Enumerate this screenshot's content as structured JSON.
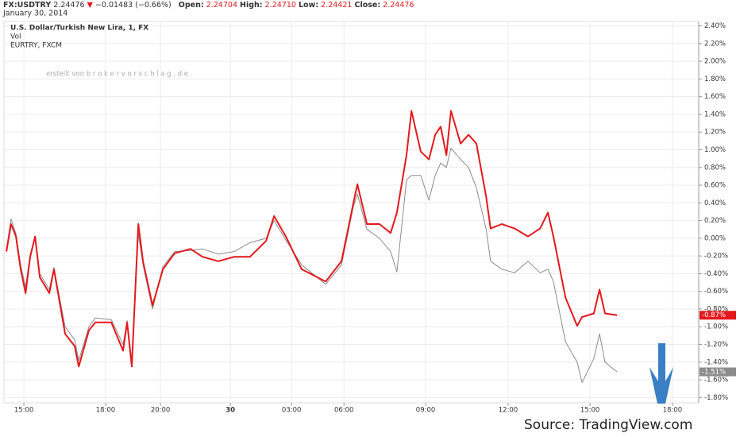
{
  "header": {
    "symbol": "FX:USDTRY",
    "price": "2.24476",
    "change_arrow": "▼",
    "change": "−0.01483 (−0.66%)",
    "open_label": "Open:",
    "open": "2.24704",
    "high_label": "High:",
    "high": "2.24710",
    "low_label": "Low:",
    "low": "2.24421",
    "close_label": "Close:",
    "close": "2.24476",
    "date": "January 30, 2014"
  },
  "chart_data": {
    "type": "line",
    "legend_lines": [
      "U.S. Dollar/Turkish New Lira, 1, FX",
      "Vol",
      "EURTRY, FXCM"
    ],
    "watermark": "erstellt von b r o k e r v o r s c h l a g . d e",
    "source": "Source: TradingView.com",
    "x": [
      -0.64,
      -0.47,
      -0.29,
      -0.12,
      0.06,
      0.23,
      0.41,
      0.58,
      0.93,
      1.1,
      1.51,
      1.86,
      2.01,
      2.38,
      2.62,
      3.2,
      3.63,
      3.78,
      3.95,
      4.19,
      4.36,
      4.71,
      5.09,
      5.52,
      6.1,
      6.54,
      7.12,
      7.7,
      8.28,
      8.87,
      9.16,
      9.59,
      10.17,
      11.05,
      11.63,
      12.06,
      12.21,
      12.56,
      13.02,
      13.43,
      13.66,
      14.01,
      14.19,
      14.53,
      14.83,
      15.06,
      15.26,
      15.47,
      15.64,
      15.99,
      16.28,
      16.57,
      16.92,
      17.09,
      17.5,
      17.97,
      18.46,
      18.9,
      19.19,
      19.39,
      19.83,
      20.26,
      20.44,
      20.87,
      21.08,
      21.28,
      21.72
    ],
    "series": [
      {
        "name": "USDTRY",
        "color": "#e3191e",
        "width": 2,
        "values": [
          -0.15,
          0.16,
          0.02,
          -0.35,
          -0.62,
          -0.21,
          0.02,
          -0.44,
          -0.62,
          -0.35,
          -1.08,
          -1.22,
          -1.45,
          -1.04,
          -0.95,
          -0.95,
          -1.27,
          -0.95,
          -1.45,
          0.16,
          -0.26,
          -0.76,
          -0.35,
          -0.17,
          -0.12,
          -0.21,
          -0.26,
          -0.21,
          -0.21,
          -0.03,
          0.25,
          0.02,
          -0.35,
          -0.49,
          -0.26,
          0.39,
          0.61,
          0.16,
          0.16,
          0.06,
          0.29,
          0.94,
          1.44,
          0.98,
          0.89,
          1.17,
          1.26,
          0.94,
          1.44,
          1.07,
          1.17,
          1.07,
          0.48,
          0.11,
          0.16,
          0.11,
          0.02,
          0.11,
          0.29,
          0.02,
          -0.67,
          -0.99,
          -0.89,
          -0.85,
          -0.58,
          -0.85,
          -0.87
        ],
        "last_value": {
          "value": -0.87,
          "label": "-0.87%"
        }
      },
      {
        "name": "EURTRY",
        "color": "#8c8c8c",
        "width": 1,
        "values": [
          -0.12,
          0.22,
          0.05,
          -0.3,
          -0.55,
          -0.18,
          0.0,
          -0.4,
          -0.58,
          -0.33,
          -1.0,
          -1.15,
          -1.38,
          -1.0,
          -0.9,
          -0.92,
          -1.2,
          -0.93,
          -1.4,
          0.05,
          -0.3,
          -0.8,
          -0.32,
          -0.15,
          -0.14,
          -0.12,
          -0.18,
          -0.15,
          -0.05,
          0.0,
          0.2,
          -0.02,
          -0.3,
          -0.52,
          -0.3,
          0.35,
          0.5,
          0.1,
          0.0,
          -0.15,
          -0.38,
          0.66,
          0.71,
          0.71,
          0.43,
          0.71,
          0.85,
          0.8,
          1.02,
          0.89,
          0.8,
          0.57,
          0.11,
          -0.26,
          -0.35,
          -0.39,
          -0.26,
          -0.39,
          -0.35,
          -0.49,
          -1.17,
          -1.4,
          -1.63,
          -1.36,
          -1.08,
          -1.4,
          -1.51
        ],
        "last_value": {
          "value": -1.51,
          "label": "-1.51%"
        }
      }
    ],
    "xlim": [
      -0.73,
      24.71
    ],
    "xticks": [
      {
        "value": 0,
        "label": "15:00"
      },
      {
        "value": 2.99,
        "label": "18:00"
      },
      {
        "value": 5.0,
        "label": "20:00"
      },
      {
        "value": 7.56,
        "label": "30"
      },
      {
        "value": 9.8,
        "label": "03:00"
      },
      {
        "value": 11.72,
        "label": "06:00"
      },
      {
        "value": 14.71,
        "label": "09:00"
      },
      {
        "value": 17.73,
        "label": "12:00"
      },
      {
        "value": 20.73,
        "label": "15:00"
      },
      {
        "value": 23.75,
        "label": "18:00"
      }
    ],
    "ylim": [
      -1.86,
      2.45
    ],
    "yticks": [
      {
        "value": 2.4,
        "label": "2.40%"
      },
      {
        "value": 2.2,
        "label": "2.20%"
      },
      {
        "value": 2.0,
        "label": "2.00%"
      },
      {
        "value": 1.8,
        "label": "1.80%"
      },
      {
        "value": 1.6,
        "label": "1.60%"
      },
      {
        "value": 1.4,
        "label": "1.40%"
      },
      {
        "value": 1.2,
        "label": "1.20%"
      },
      {
        "value": 1.0,
        "label": "1.00%"
      },
      {
        "value": 0.8,
        "label": "0.80%"
      },
      {
        "value": 0.6,
        "label": "0.60%"
      },
      {
        "value": 0.4,
        "label": "0.40%"
      },
      {
        "value": 0.2,
        "label": "0.20%"
      },
      {
        "value": 0,
        "label": "0.00%"
      },
      {
        "value": -0.2,
        "label": "-0.20%"
      },
      {
        "value": -0.4,
        "label": "-0.40%"
      },
      {
        "value": -0.6,
        "label": "-0.60%"
      },
      {
        "value": -0.8,
        "label": "-0.80%"
      },
      {
        "value": -1.0,
        "label": "-1.00%"
      },
      {
        "value": -1.2,
        "label": "-1.20%"
      },
      {
        "value": -1.4,
        "label": "-1.40%"
      },
      {
        "value": -1.6,
        "label": "-1.60%"
      },
      {
        "value": -1.8,
        "label": "-1.80%"
      }
    ],
    "grid": true
  }
}
